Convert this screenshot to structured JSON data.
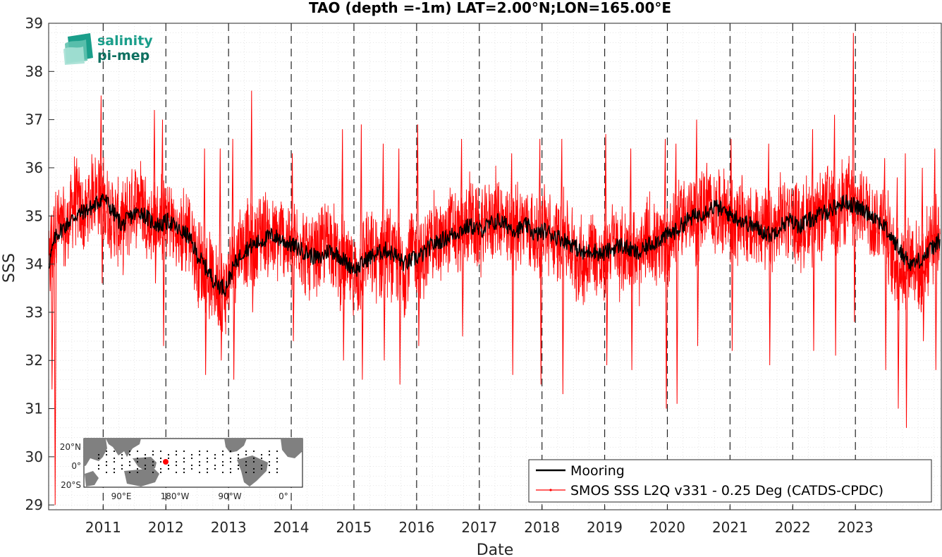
{
  "chart_data": {
    "type": "line",
    "title": "TAO (depth =-1m) LAT=2.00°N;LON=165.00°E",
    "xlabel": "Date",
    "ylabel": "SSS",
    "xlim": [
      2010.13,
      2024.37
    ],
    "ylim": [
      28.9,
      39
    ],
    "x_ticks": [
      2011,
      2012,
      2013,
      2014,
      2015,
      2016,
      2017,
      2018,
      2019,
      2020,
      2021,
      2022,
      2023
    ],
    "x_tick_labels": [
      "2011",
      "2012",
      "2013",
      "2014",
      "2015",
      "2016",
      "2017",
      "2018",
      "2019",
      "2020",
      "2021",
      "2022",
      "2023"
    ],
    "y_ticks": [
      29,
      30,
      31,
      32,
      33,
      34,
      35,
      36,
      37,
      38,
      39
    ],
    "y_tick_labels": [
      "29",
      "30",
      "31",
      "32",
      "33",
      "34",
      "35",
      "36",
      "37",
      "38",
      "39"
    ],
    "grid": true,
    "year_dividers": true,
    "legend_position": "bottom-right",
    "series": [
      {
        "name": "Mooring",
        "color": "#000000",
        "x": [
          2010.13,
          2010.25,
          2010.4,
          2010.55,
          2010.7,
          2010.85,
          2011.0,
          2011.15,
          2011.3,
          2011.45,
          2011.6,
          2011.75,
          2011.9,
          2012.05,
          2012.2,
          2012.35,
          2012.5,
          2012.65,
          2012.8,
          2012.95,
          2013.1,
          2013.25,
          2013.4,
          2013.55,
          2013.7,
          2013.85,
          2014.0,
          2014.15,
          2014.3,
          2014.45,
          2014.6,
          2014.75,
          2014.9,
          2015.05,
          2015.2,
          2015.35,
          2015.5,
          2015.65,
          2015.8,
          2015.95,
          2016.1,
          2016.25,
          2016.4,
          2016.55,
          2016.7,
          2016.85,
          2017.0,
          2017.15,
          2017.3,
          2017.45,
          2017.6,
          2017.75,
          2017.9,
          2018.05,
          2018.2,
          2018.35,
          2018.5,
          2018.65,
          2018.8,
          2018.95,
          2019.1,
          2019.25,
          2019.4,
          2019.55,
          2019.7,
          2019.85,
          2020.0,
          2020.15,
          2020.3,
          2020.45,
          2020.6,
          2020.75,
          2020.9,
          2021.05,
          2021.2,
          2021.35,
          2021.5,
          2021.65,
          2021.8,
          2021.95,
          2022.1,
          2022.25,
          2022.4,
          2022.55,
          2022.7,
          2022.85,
          2023.0,
          2023.15,
          2023.3,
          2023.45,
          2023.6,
          2023.75,
          2023.9,
          2024.05,
          2024.2,
          2024.35
        ],
        "y": [
          34.0,
          34.6,
          34.8,
          35.0,
          35.1,
          35.2,
          35.4,
          35.1,
          34.8,
          35.0,
          35.1,
          34.9,
          34.8,
          34.9,
          34.7,
          34.6,
          34.2,
          33.9,
          33.6,
          33.5,
          34.0,
          34.3,
          34.4,
          34.5,
          34.6,
          34.5,
          34.4,
          34.3,
          34.2,
          34.1,
          34.3,
          34.2,
          34.0,
          33.9,
          34.1,
          34.2,
          34.3,
          34.2,
          34.0,
          34.1,
          34.2,
          34.4,
          34.5,
          34.6,
          34.7,
          34.8,
          34.7,
          34.8,
          34.9,
          34.8,
          34.7,
          34.8,
          34.6,
          34.7,
          34.6,
          34.5,
          34.4,
          34.2,
          34.3,
          34.2,
          34.3,
          34.4,
          34.3,
          34.2,
          34.4,
          34.5,
          34.6,
          34.7,
          34.9,
          35.0,
          35.1,
          35.2,
          35.1,
          35.0,
          34.9,
          34.8,
          34.7,
          34.6,
          34.8,
          34.9,
          34.8,
          34.9,
          35.0,
          35.1,
          35.2,
          35.3,
          35.2,
          35.1,
          35.0,
          34.8,
          34.5,
          34.2,
          34.0,
          34.1,
          34.3,
          34.5
        ]
      },
      {
        "name": "SMOS SSS L2Q v331 - 0.25 Deg (CATDS-CPDC)",
        "color": "#ff0000",
        "x": [
          2010.13,
          2010.25,
          2010.4,
          2010.55,
          2010.7,
          2010.85,
          2011.0,
          2011.15,
          2011.3,
          2011.45,
          2011.6,
          2011.75,
          2011.9,
          2012.05,
          2012.2,
          2012.35,
          2012.5,
          2012.65,
          2012.8,
          2012.95,
          2013.1,
          2013.25,
          2013.4,
          2013.55,
          2013.7,
          2013.85,
          2014.0,
          2014.15,
          2014.3,
          2014.45,
          2014.6,
          2014.75,
          2014.9,
          2015.05,
          2015.2,
          2015.35,
          2015.5,
          2015.65,
          2015.8,
          2015.95,
          2016.1,
          2016.25,
          2016.4,
          2016.55,
          2016.7,
          2016.85,
          2017.0,
          2017.15,
          2017.3,
          2017.45,
          2017.6,
          2017.75,
          2017.9,
          2018.05,
          2018.2,
          2018.35,
          2018.5,
          2018.65,
          2018.8,
          2018.95,
          2019.1,
          2019.25,
          2019.4,
          2019.55,
          2019.7,
          2019.85,
          2020.0,
          2020.15,
          2020.3,
          2020.45,
          2020.6,
          2020.75,
          2020.9,
          2021.05,
          2021.2,
          2021.35,
          2021.5,
          2021.65,
          2021.8,
          2021.95,
          2022.1,
          2022.25,
          2022.4,
          2022.55,
          2022.7,
          2022.85,
          2023.0,
          2023.15,
          2023.3,
          2023.45,
          2023.6,
          2023.75,
          2023.9,
          2024.05,
          2024.2,
          2024.35
        ],
        "y": [
          33.8,
          34.9,
          34.6,
          35.4,
          34.9,
          35.6,
          35.3,
          35.0,
          34.7,
          35.2,
          35.4,
          34.8,
          34.9,
          35.0,
          34.5,
          34.8,
          34.1,
          33.8,
          33.6,
          33.4,
          34.2,
          34.5,
          34.3,
          34.8,
          34.4,
          34.6,
          34.3,
          34.5,
          34.0,
          34.2,
          34.6,
          34.1,
          33.9,
          33.7,
          34.3,
          34.0,
          34.4,
          34.1,
          33.9,
          34.3,
          34.0,
          34.6,
          34.4,
          34.8,
          34.5,
          35.0,
          34.6,
          34.9,
          35.1,
          34.6,
          34.8,
          34.9,
          34.5,
          34.8,
          34.4,
          34.7,
          34.2,
          34.0,
          34.4,
          33.9,
          34.5,
          34.2,
          34.4,
          34.0,
          34.6,
          34.3,
          34.4,
          34.9,
          35.1,
          34.8,
          35.3,
          35.0,
          35.2,
          34.8,
          35.0,
          34.6,
          34.9,
          34.5,
          34.9,
          35.1,
          34.7,
          35.0,
          34.8,
          35.3,
          35.0,
          35.4,
          35.1,
          35.3,
          34.8,
          35.0,
          34.1,
          33.9,
          34.2,
          33.8,
          34.5,
          34.7
        ],
        "spikes": [
          {
            "x": 2010.2,
            "low": 29.0,
            "high": 35.2
          },
          {
            "x": 2010.15,
            "low": 31.4,
            "high": 35.0
          },
          {
            "x": 2010.95,
            "low": 33.6,
            "high": 37.5
          },
          {
            "x": 2011.8,
            "low": 33.6,
            "high": 37.2
          },
          {
            "x": 2011.93,
            "low": 32.3,
            "high": 37.0
          },
          {
            "x": 2012.6,
            "low": 31.7,
            "high": 36.4
          },
          {
            "x": 2012.85,
            "low": 32.0,
            "high": 36.4
          },
          {
            "x": 2013.05,
            "low": 31.6,
            "high": 36.6
          },
          {
            "x": 2013.35,
            "low": 33.0,
            "high": 37.6
          },
          {
            "x": 2014.0,
            "low": 32.4,
            "high": 36.3
          },
          {
            "x": 2014.8,
            "low": 32.0,
            "high": 36.8
          },
          {
            "x": 2015.1,
            "low": 31.6,
            "high": 36.9
          },
          {
            "x": 2015.45,
            "low": 32.0,
            "high": 36.5
          },
          {
            "x": 2015.7,
            "low": 31.5,
            "high": 36.4
          },
          {
            "x": 2016.0,
            "low": 32.3,
            "high": 36.9
          },
          {
            "x": 2016.7,
            "low": 32.5,
            "high": 36.6
          },
          {
            "x": 2017.5,
            "low": 31.7,
            "high": 36.3
          },
          {
            "x": 2017.95,
            "low": 31.5,
            "high": 36.6
          },
          {
            "x": 2018.3,
            "low": 31.3,
            "high": 36.6
          },
          {
            "x": 2019.0,
            "low": 31.9,
            "high": 36.7
          },
          {
            "x": 2019.4,
            "low": 31.8,
            "high": 36.4
          },
          {
            "x": 2019.95,
            "low": 31.0,
            "high": 36.6
          },
          {
            "x": 2020.12,
            "low": 31.1,
            "high": 36.5
          },
          {
            "x": 2020.45,
            "low": 32.3,
            "high": 37.0
          },
          {
            "x": 2021.0,
            "low": 32.2,
            "high": 36.6
          },
          {
            "x": 2021.6,
            "low": 31.9,
            "high": 36.5
          },
          {
            "x": 2022.3,
            "low": 32.2,
            "high": 36.8
          },
          {
            "x": 2022.65,
            "low": 32.1,
            "high": 37.1
          },
          {
            "x": 2022.95,
            "low": 32.8,
            "high": 38.8
          },
          {
            "x": 2023.45,
            "low": 31.8,
            "high": 36.2
          },
          {
            "x": 2023.65,
            "low": 31.0,
            "high": 35.8
          },
          {
            "x": 2023.78,
            "low": 30.6,
            "high": 36.3
          },
          {
            "x": 2024.05,
            "low": 32.4,
            "high": 36.0
          },
          {
            "x": 2024.25,
            "low": 31.8,
            "high": 36.4
          }
        ]
      }
    ]
  },
  "logo": {
    "line1": "salinity",
    "line2": "pi-mep",
    "color_main": "#1a9e8a",
    "color_light": "#7fd1c2"
  },
  "inset_map": {
    "y_labels": [
      "20°N",
      "0°",
      "20°S"
    ],
    "x_labels": [
      "90°E",
      "180°W",
      "90°W",
      "0°"
    ],
    "land_color": "#808080",
    "ocean_color": "#ffffff",
    "marker_color": "#ff0000"
  },
  "legend": {
    "entries": [
      "Mooring",
      "SMOS SSS L2Q v331 - 0.25 Deg (CATDS-CPDC)"
    ]
  }
}
